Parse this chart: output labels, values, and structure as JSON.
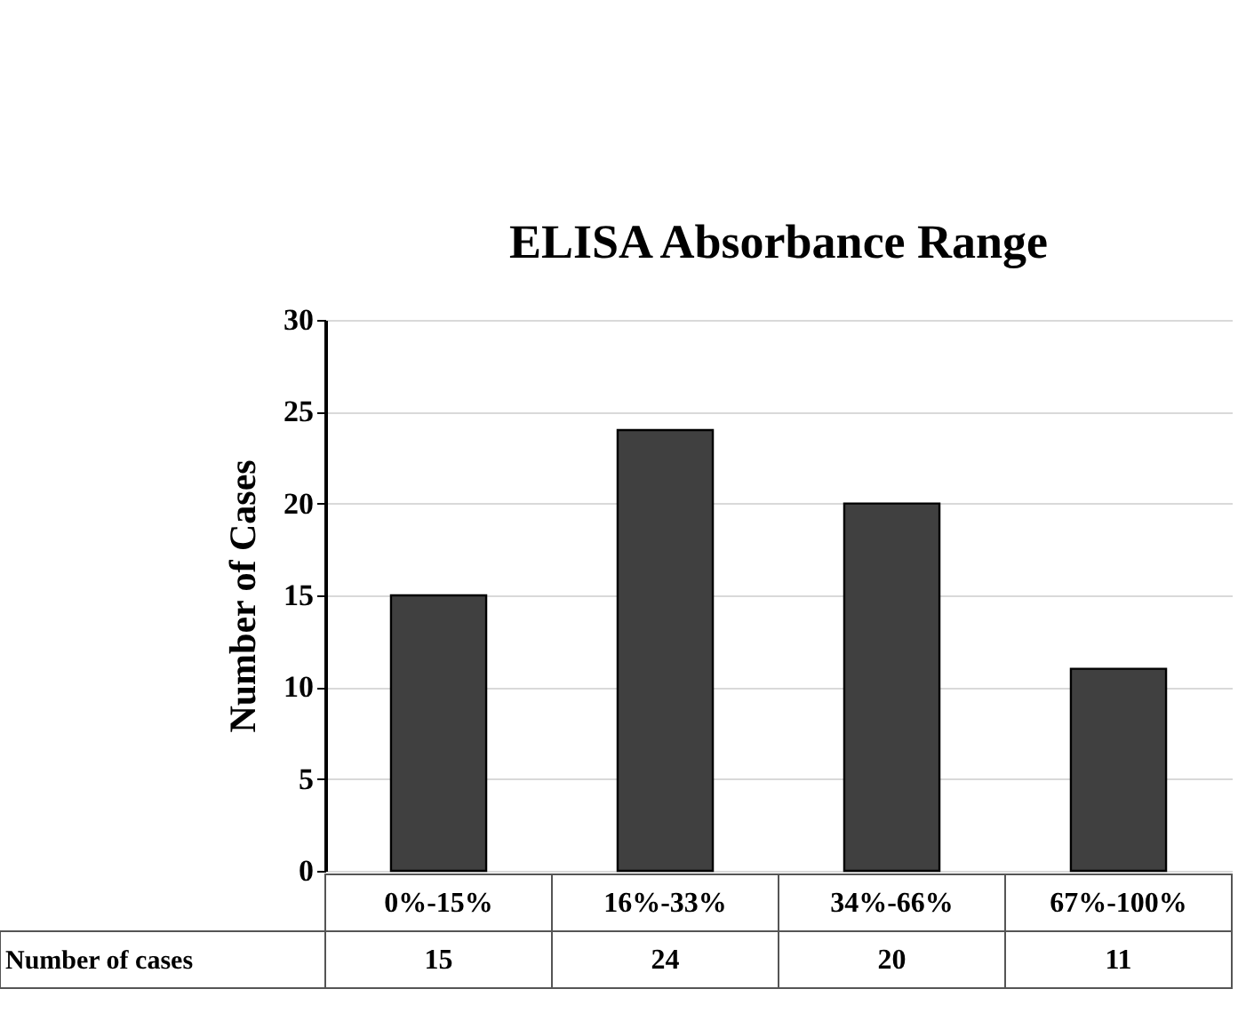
{
  "chart_data": {
    "type": "bar",
    "title": "ELISA Absorbance Range",
    "ylabel": "Number of Cases",
    "categories": [
      "0%-15%",
      "16%-33%",
      "34%-66%",
      "67%-100%"
    ],
    "values": [
      15,
      24,
      20,
      11
    ],
    "color": "#404040",
    "ylim": [
      0,
      30
    ],
    "yticks": [
      0,
      5,
      10,
      15,
      20,
      25,
      30
    ],
    "grid": "y",
    "data_labels": true,
    "annotations": [
      "Number of cases"
    ]
  }
}
